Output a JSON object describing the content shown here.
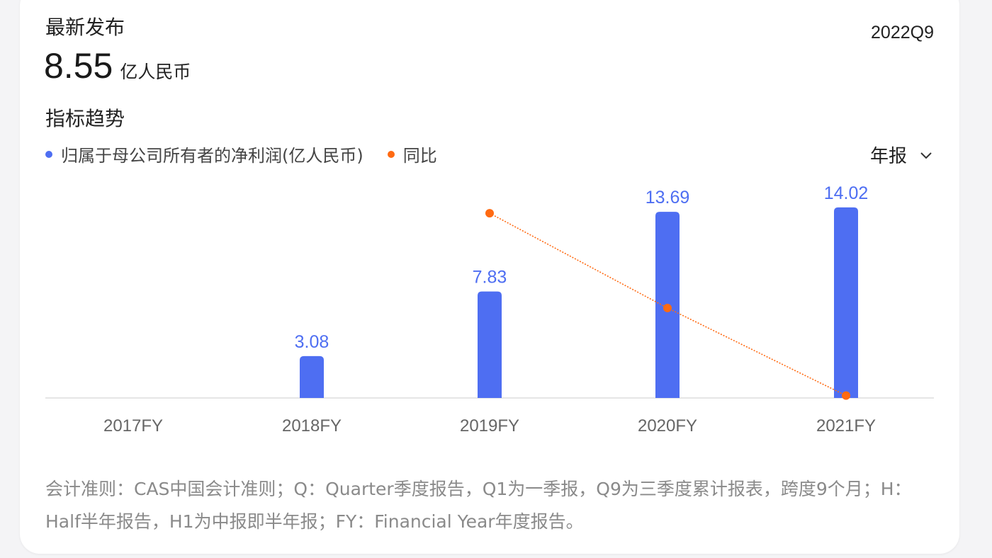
{
  "header": {
    "latest_label": "最新发布",
    "period": "2022Q9",
    "value": "8.55",
    "unit": "亿人民币"
  },
  "trend": {
    "title": "指标趋势",
    "selector_label": "年报"
  },
  "colors": {
    "bar": "#4e6ef2",
    "yoy": "#ff6a12",
    "axis": "#e6e6e6",
    "tick": "#666666"
  },
  "chart_data": {
    "type": "bar",
    "categories": [
      "2017FY",
      "2018FY",
      "2019FY",
      "2020FY",
      "2021FY"
    ],
    "series": [
      {
        "name": "归属于母公司所有者的净利润(亿人民币)",
        "type": "bar",
        "values": [
          null,
          3.08,
          7.83,
          13.69,
          14.02
        ],
        "data_labels": [
          "",
          "3.08",
          "7.83",
          "13.69",
          "14.02"
        ]
      },
      {
        "name": "同比",
        "type": "line",
        "values": [
          null,
          null,
          154,
          75,
          2
        ]
      }
    ],
    "ylim": [
      0,
      15
    ],
    "y2lim": [
      0,
      170
    ],
    "grid": false,
    "legend": "top-left"
  },
  "footnote": "会计准则：CAS中国会计准则；Q：Quarter季度报告，Q1为一季报，Q9为三季度累计报表，跨度9个月；H：Half半年报告，H1为中报即半年报；FY：Financial Year年度报告。"
}
